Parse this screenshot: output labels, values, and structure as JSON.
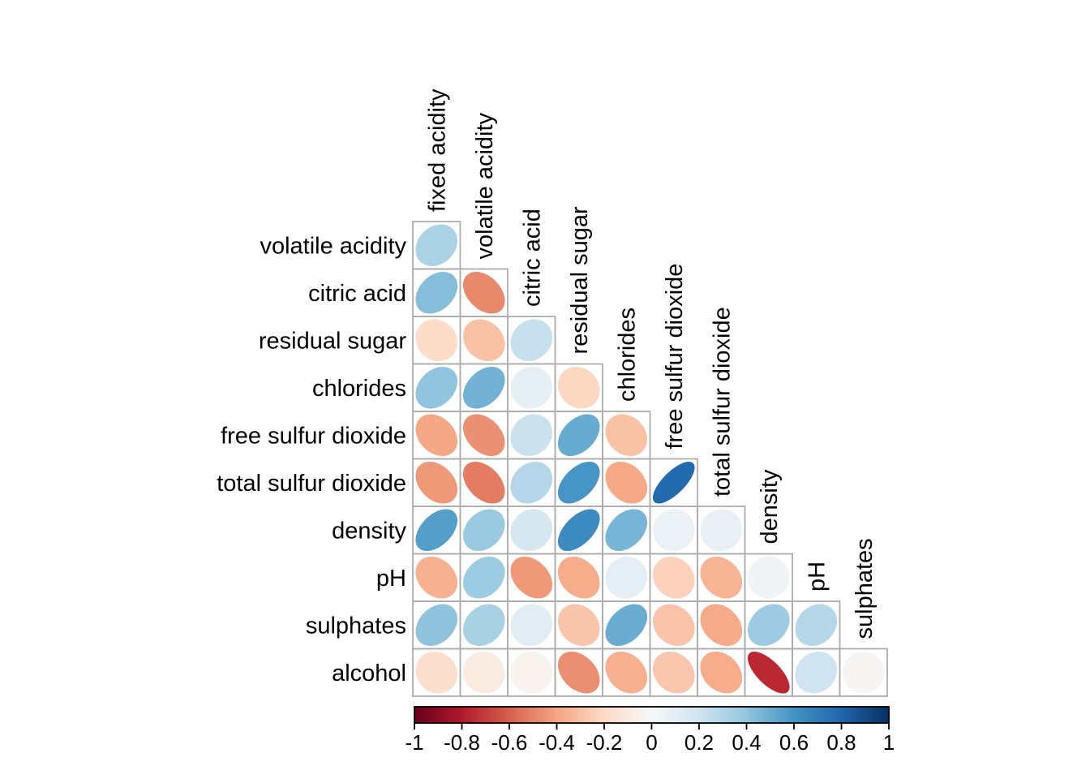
{
  "figure": {
    "background": "#FFFFFF",
    "description": "Ellipse correlogram, lower triangle, wine quality variables"
  },
  "chart_data": {
    "type": "heatmap",
    "subtype": "ellipse-correlogram-lower-triangle",
    "title": "",
    "variables": [
      "fixed acidity",
      "volatile acidity",
      "citric acid",
      "residual sugar",
      "chlorides",
      "free sulfur dioxide",
      "total sulfur dioxide",
      "density",
      "pH",
      "sulphates",
      "alcohol"
    ],
    "row_labels": [
      "volatile acidity",
      "citric acid",
      "residual sugar",
      "chlorides",
      "free sulfur dioxide",
      "total sulfur dioxide",
      "density",
      "pH",
      "sulphates",
      "alcohol"
    ],
    "col_labels": [
      "fixed acidity",
      "volatile acidity",
      "citric acid",
      "residual sugar",
      "chlorides",
      "free sulfur dioxide",
      "total sulfur dioxide",
      "density",
      "pH",
      "sulphates"
    ],
    "correlations": [
      [
        0.219
      ],
      [
        0.324,
        -0.378
      ],
      [
        -0.112,
        -0.196,
        0.142
      ],
      [
        0.298,
        0.377,
        0.039,
        -0.129
      ],
      [
        -0.283,
        -0.353,
        0.133,
        0.403,
        -0.195
      ],
      [
        -0.329,
        -0.414,
        0.195,
        0.495,
        -0.28,
        0.721
      ],
      [
        0.459,
        0.271,
        0.096,
        0.552,
        0.363,
        0.026,
        0.032
      ],
      [
        -0.252,
        0.261,
        -0.33,
        -0.267,
        0.045,
        -0.146,
        -0.238,
        0.012
      ],
      [
        0.299,
        0.226,
        0.056,
        -0.186,
        0.395,
        -0.188,
        -0.276,
        0.259,
        0.192
      ],
      [
        -0.095,
        -0.038,
        -0.01,
        -0.359,
        -0.257,
        -0.18,
        -0.266,
        -0.687,
        0.121,
        -0.003
      ]
    ],
    "value_range": [
      -1,
      1
    ],
    "positive_direction": "blue",
    "negative_direction": "red",
    "grid_on": true,
    "grid_color": "#ADADAD",
    "text_color": "#000000",
    "colorbar": {
      "position": "bottom",
      "tick_labels": [
        "-1",
        "-0.8",
        "-0.6",
        "-0.4",
        "-0.2",
        "0",
        "0.2",
        "0.4",
        "0.6",
        "0.8",
        "1"
      ],
      "tick_values": [
        -1,
        -0.8,
        -0.6,
        -0.4,
        -0.2,
        0,
        0.2,
        0.4,
        0.6,
        0.8,
        1
      ],
      "border_color": "#000000",
      "palette_anchors": [
        "#67001F",
        "#B2182B",
        "#D6604D",
        "#F4A582",
        "#FDDBC7",
        "#F7F7F7",
        "#D1E5F0",
        "#92C5DE",
        "#4393C3",
        "#2166AC",
        "#053061"
      ]
    }
  }
}
